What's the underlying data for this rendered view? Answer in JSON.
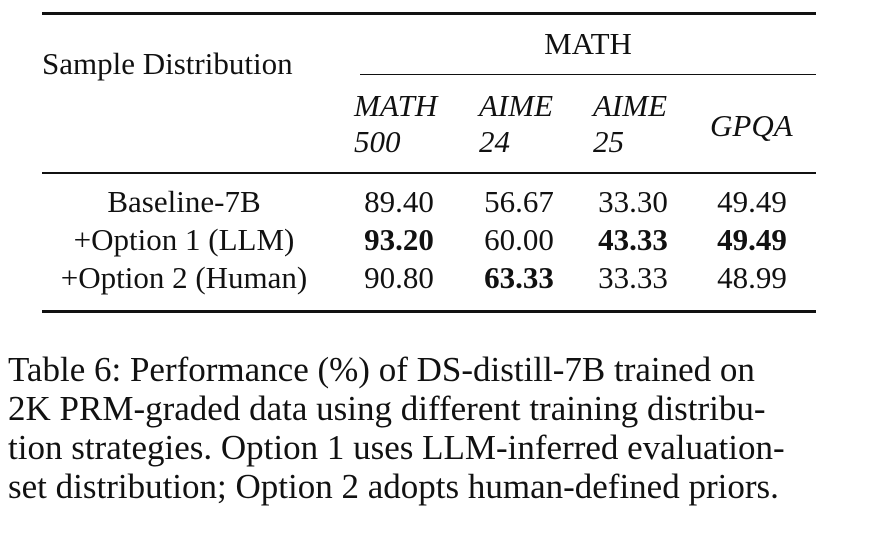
{
  "table": {
    "header": {
      "sample_label": "Sample Distribution",
      "group_label": "MATH",
      "subcolumns": [
        {
          "line1": "MATH",
          "line2": "500"
        },
        {
          "line1": "AIME",
          "line2": "24"
        },
        {
          "line1": "AIME",
          "line2": "25"
        },
        {
          "line1": "GPQA",
          "line2": ""
        }
      ]
    },
    "rows": [
      {
        "label": "Baseline-7B",
        "values": [
          "89.40",
          "56.67",
          "33.30",
          "49.49"
        ],
        "bold": [
          false,
          false,
          false,
          false
        ]
      },
      {
        "label": "+Option 1 (LLM)",
        "values": [
          "93.20",
          "60.00",
          "43.33",
          "49.49"
        ],
        "bold": [
          true,
          false,
          true,
          true
        ]
      },
      {
        "label": "+Option 2 (Human)",
        "values": [
          "90.80",
          "63.33",
          "33.33",
          "48.99"
        ],
        "bold": [
          false,
          true,
          false,
          false
        ]
      }
    ]
  },
  "caption": {
    "lines": [
      "Table 6: Performance (%) of DS-distill-7B trained on",
      "2K PRM-graded data using different training distribu-",
      "tion strategies. Option 1 uses LLM-inferred evaluation-",
      "set distribution; Option 2 adopts human-defined priors."
    ]
  }
}
